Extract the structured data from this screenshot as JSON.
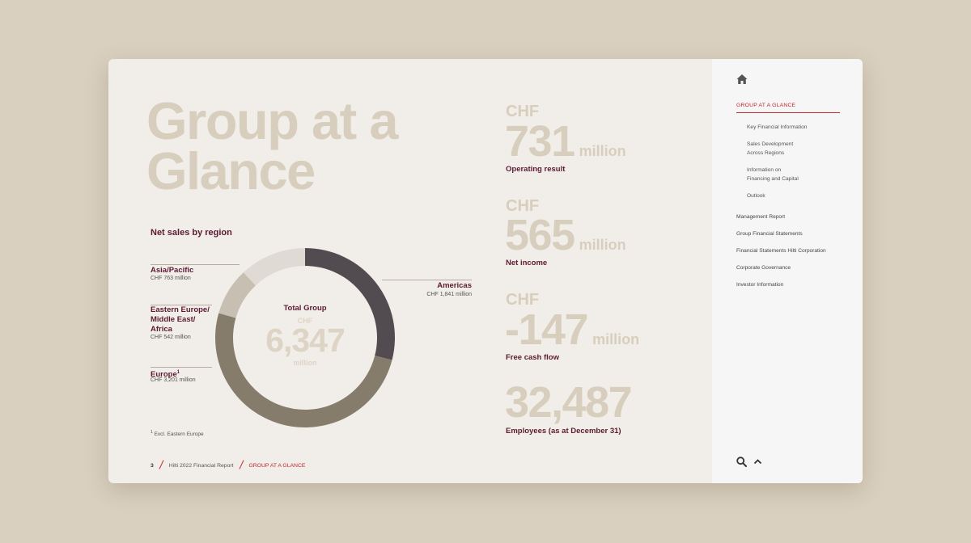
{
  "page": {
    "title_line1": "Group at a",
    "title_line2": "Glance",
    "section_title": "Net sales by region",
    "footnote": "Excl. Eastern Europe",
    "footnote_mark": "1"
  },
  "regions": {
    "asia": {
      "name": "Asia/Pacific",
      "value": "CHF 763 million"
    },
    "eemea": {
      "name_line1": "Eastern Europe/",
      "name_line2": "Middle East/",
      "name_line3": "Africa",
      "value": "CHF 542 million"
    },
    "europe": {
      "name": "Europe",
      "sup": "1",
      "value": "CHF 3,201 million"
    },
    "americas": {
      "name": "Americas",
      "value": "CHF 1,841 million"
    }
  },
  "donut": {
    "center_label": "Total Group",
    "currency": "CHF",
    "total": "6,347",
    "unit": "million",
    "segments": [
      {
        "region": "Americas",
        "value": 1841,
        "color": "#524c50"
      },
      {
        "region": "Europe",
        "value": 3201,
        "color": "#857c6c"
      },
      {
        "region": "Eastern Europe/Middle East/Africa",
        "value": 542,
        "color": "#c7bfb2"
      },
      {
        "region": "Asia/Pacific",
        "value": 763,
        "color": "#dfdad4"
      }
    ]
  },
  "kpis": {
    "operating": {
      "currency": "CHF",
      "value": "731",
      "unit": "million",
      "label": "Operating result"
    },
    "net_income": {
      "currency": "CHF",
      "value": "565",
      "unit": "million",
      "label": "Net income"
    },
    "fcf": {
      "currency": "CHF",
      "value": "-147",
      "unit": "million",
      "label": "Free cash flow"
    },
    "employees": {
      "value": "32,487",
      "label": "Employees (as at December 31)"
    }
  },
  "footer": {
    "page_number": "3",
    "report": "Hilti 2022 Financial Report",
    "section": "GROUP AT A GLANCE"
  },
  "sidebar": {
    "active": "GROUP AT A GLANCE",
    "sub_items": [
      {
        "line1": "Key Financial Information",
        "line2": ""
      },
      {
        "line1": "Sales Development",
        "line2": "Across Regions"
      },
      {
        "line1": "Information on",
        "line2": "Financing and Capital"
      },
      {
        "line1": "Outlook",
        "line2": ""
      }
    ],
    "items": [
      "Management Report",
      "Group Financial Statements",
      "Financial Statements Hilti Corporation",
      "Corporate Governance",
      "Investor Information"
    ]
  },
  "colors": {
    "accent": "#c1272d",
    "heading": "#5c1a33",
    "muted_big": "#d7cebd",
    "background": "#d9d0bf",
    "card": "#f1ede8",
    "sidebar": "#f6f6f6"
  }
}
